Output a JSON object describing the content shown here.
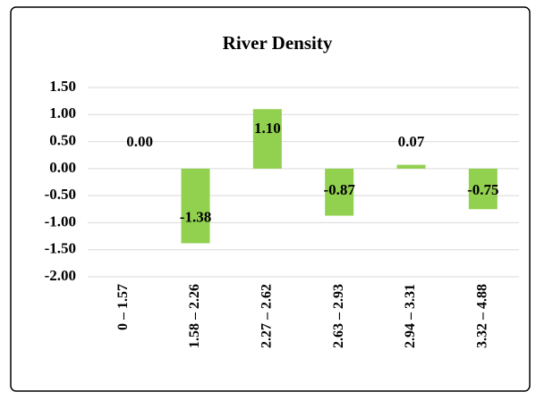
{
  "chart_data": {
    "type": "bar",
    "title": "River Density",
    "categories": [
      "0 – 1.57",
      "1.58 – 2.26",
      "2.27 – 2.62",
      "2.63 – 2.93",
      "2.94 – 3.31",
      "3.32 – 4.88"
    ],
    "values": [
      0,
      -1.38,
      1.1,
      -0.87,
      0.07,
      -0.75
    ],
    "value_labels": [
      "0.00",
      "-1.38",
      "1.10",
      "-0.87",
      "0.07",
      "-0.75"
    ],
    "color": "#92d050",
    "ylim": [
      -2,
      1.5
    ],
    "yticks": [
      {
        "value": -2,
        "label": "-2.00"
      },
      {
        "value": -1.5,
        "label": "-1.50"
      },
      {
        "value": -1,
        "label": "-1.00"
      },
      {
        "value": -0.5,
        "label": "-0.50"
      },
      {
        "value": 0,
        "label": "0.00"
      },
      {
        "value": 0.5,
        "label": "0.50"
      },
      {
        "value": 1,
        "label": "1.00"
      },
      {
        "value": 1.5,
        "label": "1.50"
      }
    ],
    "grid": true
  }
}
